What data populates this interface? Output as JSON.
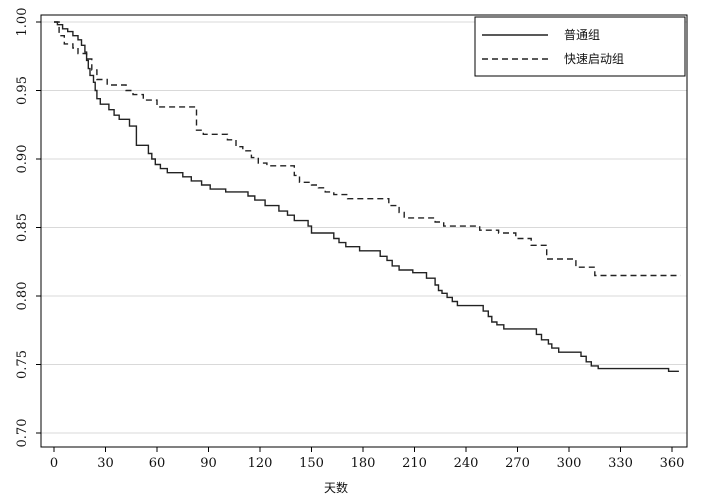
{
  "chart_data": {
    "type": "line",
    "title": "",
    "xlabel": "天数",
    "ylabel": "",
    "xlim": [
      0,
      365
    ],
    "ylim": [
      0.7,
      1.0
    ],
    "xticks": [
      0,
      30,
      60,
      90,
      120,
      150,
      180,
      210,
      240,
      270,
      300,
      330,
      360
    ],
    "xtick_labels": [
      "0",
      "30",
      "60",
      "90",
      "120",
      "150",
      "180",
      "210",
      "240",
      "270",
      "300",
      "330",
      "360"
    ],
    "yticks": [
      0.7,
      0.75,
      0.8,
      0.85,
      0.9,
      0.95,
      1.0
    ],
    "ytick_labels": [
      "0.70",
      "0.75",
      "0.80",
      "0.85",
      "0.90",
      "0.95",
      "1.00"
    ],
    "grid": true,
    "legend_position": "top-right",
    "series": [
      {
        "name": "普通组",
        "style": "solid",
        "color": "#222222",
        "points": [
          [
            0,
            1.0
          ],
          [
            2,
            0.998
          ],
          [
            5,
            0.995
          ],
          [
            8,
            0.993
          ],
          [
            11,
            0.99
          ],
          [
            14,
            0.987
          ],
          [
            16,
            0.983
          ],
          [
            18,
            0.978
          ],
          [
            19,
            0.972
          ],
          [
            20,
            0.966
          ],
          [
            21,
            0.961
          ],
          [
            23,
            0.956
          ],
          [
            24,
            0.95
          ],
          [
            25,
            0.944
          ],
          [
            27,
            0.94
          ],
          [
            32,
            0.936
          ],
          [
            35,
            0.932
          ],
          [
            38,
            0.929
          ],
          [
            44,
            0.924
          ],
          [
            48,
            0.91
          ],
          [
            55,
            0.904
          ],
          [
            57,
            0.9
          ],
          [
            59,
            0.896
          ],
          [
            62,
            0.893
          ],
          [
            66,
            0.89
          ],
          [
            75,
            0.887
          ],
          [
            80,
            0.884
          ],
          [
            86,
            0.881
          ],
          [
            91,
            0.878
          ],
          [
            100,
            0.876
          ],
          [
            113,
            0.873
          ],
          [
            117,
            0.87
          ],
          [
            123,
            0.866
          ],
          [
            131,
            0.862
          ],
          [
            136,
            0.859
          ],
          [
            140,
            0.855
          ],
          [
            148,
            0.851
          ],
          [
            150,
            0.846
          ],
          [
            163,
            0.842
          ],
          [
            166,
            0.839
          ],
          [
            170,
            0.836
          ],
          [
            178,
            0.833
          ],
          [
            190,
            0.829
          ],
          [
            194,
            0.826
          ],
          [
            197,
            0.822
          ],
          [
            201,
            0.819
          ],
          [
            209,
            0.817
          ],
          [
            217,
            0.813
          ],
          [
            222,
            0.808
          ],
          [
            224,
            0.804
          ],
          [
            226,
            0.802
          ],
          [
            229,
            0.799
          ],
          [
            232,
            0.796
          ],
          [
            235,
            0.793
          ],
          [
            250,
            0.789
          ],
          [
            253,
            0.785
          ],
          [
            255,
            0.781
          ],
          [
            258,
            0.779
          ],
          [
            262,
            0.776
          ],
          [
            281,
            0.772
          ],
          [
            284,
            0.768
          ],
          [
            288,
            0.765
          ],
          [
            290,
            0.762
          ],
          [
            294,
            0.759
          ],
          [
            307,
            0.756
          ],
          [
            310,
            0.752
          ],
          [
            313,
            0.749
          ],
          [
            317,
            0.747
          ],
          [
            358,
            0.745
          ],
          [
            364,
            0.745
          ]
        ]
      },
      {
        "name": "快速启动组",
        "style": "dashed",
        "color": "#222222",
        "points": [
          [
            0,
            1.0
          ],
          [
            3,
            0.99
          ],
          [
            6,
            0.984
          ],
          [
            11,
            0.981
          ],
          [
            14,
            0.977
          ],
          [
            19,
            0.973
          ],
          [
            22,
            0.965
          ],
          [
            25,
            0.958
          ],
          [
            31,
            0.954
          ],
          [
            42,
            0.95
          ],
          [
            46,
            0.947
          ],
          [
            52,
            0.943
          ],
          [
            60,
            0.938
          ],
          [
            83,
            0.921
          ],
          [
            87,
            0.918
          ],
          [
            101,
            0.914
          ],
          [
            106,
            0.909
          ],
          [
            110,
            0.906
          ],
          [
            115,
            0.901
          ],
          [
            119,
            0.897
          ],
          [
            124,
            0.895
          ],
          [
            140,
            0.888
          ],
          [
            143,
            0.883
          ],
          [
            150,
            0.881
          ],
          [
            154,
            0.879
          ],
          [
            158,
            0.876
          ],
          [
            163,
            0.874
          ],
          [
            171,
            0.871
          ],
          [
            195,
            0.866
          ],
          [
            201,
            0.861
          ],
          [
            204,
            0.857
          ],
          [
            222,
            0.854
          ],
          [
            227,
            0.851
          ],
          [
            248,
            0.848
          ],
          [
            259,
            0.846
          ],
          [
            269,
            0.842
          ],
          [
            278,
            0.837
          ],
          [
            287,
            0.827
          ],
          [
            304,
            0.821
          ],
          [
            315,
            0.815
          ],
          [
            365,
            0.815
          ]
        ]
      }
    ]
  }
}
